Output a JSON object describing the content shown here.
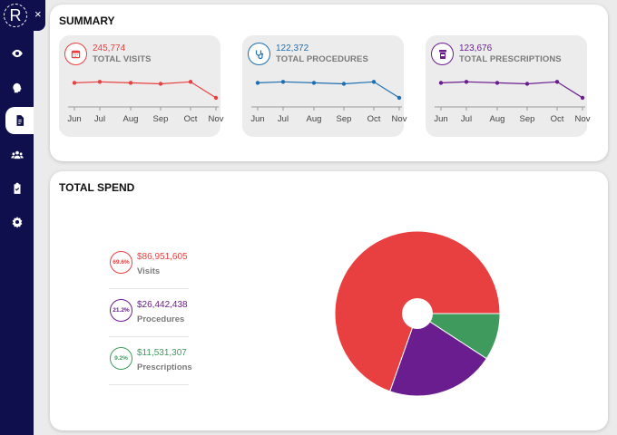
{
  "app": {
    "logo_letter": "R",
    "close_symbol": "×"
  },
  "nav": [
    {
      "name": "eye-icon",
      "active": false
    },
    {
      "name": "brain-icon",
      "active": false
    },
    {
      "name": "document-icon",
      "active": true
    },
    {
      "name": "users-icon",
      "active": false
    },
    {
      "name": "clipboard-icon",
      "active": false
    },
    {
      "name": "gear-icon",
      "active": false
    }
  ],
  "summary": {
    "title": "SUMMARY",
    "metrics": [
      {
        "value": "245,774",
        "label": "TOTAL VISITS",
        "color": "#e84040",
        "icon": "calendar-icon",
        "months": [
          "Jun",
          "Jul",
          "Aug",
          "Sep",
          "Oct",
          "Nov"
        ],
        "trend": [
          0.8,
          0.85,
          0.8,
          0.75,
          0.85,
          0.05
        ]
      },
      {
        "value": "122,372",
        "label": "TOTAL PROCEDURES",
        "color": "#1f6fb0",
        "icon": "stethoscope-icon",
        "months": [
          "Jun",
          "Jul",
          "Aug",
          "Sep",
          "Oct",
          "Nov"
        ],
        "trend": [
          0.8,
          0.85,
          0.8,
          0.75,
          0.85,
          0.05
        ]
      },
      {
        "value": "123,676",
        "label": "TOTAL PRESCRIPTIONS",
        "color": "#6a1d8e",
        "icon": "pill-bottle-icon",
        "months": [
          "Jun",
          "Jul",
          "Aug",
          "Sep",
          "Oct",
          "Nov"
        ],
        "trend": [
          0.8,
          0.85,
          0.8,
          0.75,
          0.85,
          0.05
        ]
      }
    ]
  },
  "spend": {
    "title": "TOTAL SPEND",
    "items": [
      {
        "pct": "69.6%",
        "amount": "$86,951,605",
        "label": "Visits",
        "color": "#e84040"
      },
      {
        "pct": "21.2%",
        "amount": "$26,442,438",
        "label": "Procedures",
        "color": "#6a1d8e"
      },
      {
        "pct": "9.2%",
        "amount": "$11,531,307",
        "label": "Prescriptions",
        "color": "#3f9a5e"
      }
    ]
  },
  "chart_data": {
    "type": "pie",
    "title": "TOTAL SPEND",
    "categories": [
      "Visits",
      "Procedures",
      "Prescriptions"
    ],
    "values": [
      69.6,
      21.2,
      9.2
    ],
    "colors": [
      "#e84040",
      "#6a1d8e",
      "#3f9a5e"
    ]
  }
}
